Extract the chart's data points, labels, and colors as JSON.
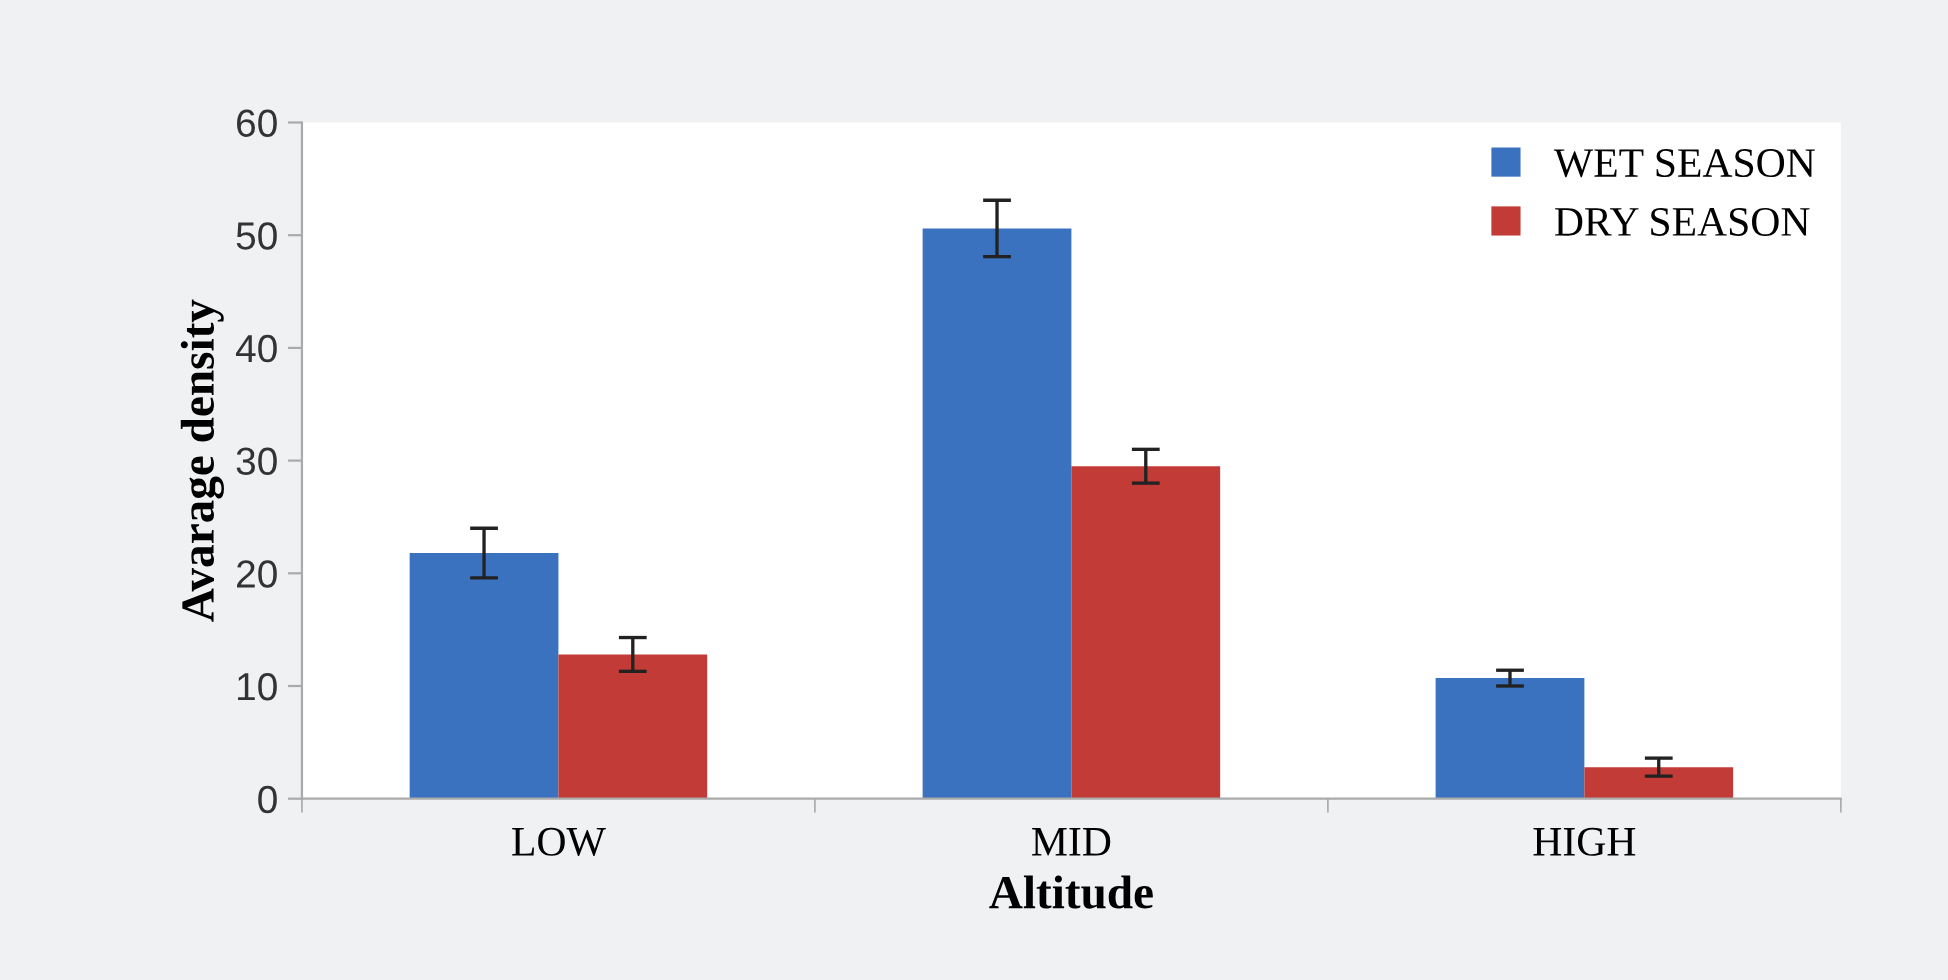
{
  "chart_data": {
    "type": "bar",
    "xlabel": "Altitude",
    "ylabel": "Avarage density",
    "categories": [
      "LOW",
      "MID",
      "HIGH"
    ],
    "series": [
      {
        "name": "WET SEASON",
        "color": "#3a72c0",
        "values": [
          21.8,
          50.6,
          10.7
        ],
        "errors": [
          2.2,
          2.5,
          0.7
        ]
      },
      {
        "name": "DRY SEASON",
        "color": "#c23b36",
        "values": [
          12.8,
          29.5,
          2.8
        ],
        "errors": [
          1.5,
          1.5,
          0.8
        ]
      }
    ],
    "ylim": [
      0,
      60
    ],
    "yticks": [
      0,
      10,
      20,
      30,
      40,
      50,
      60
    ],
    "grid": false,
    "legend": "top right"
  }
}
